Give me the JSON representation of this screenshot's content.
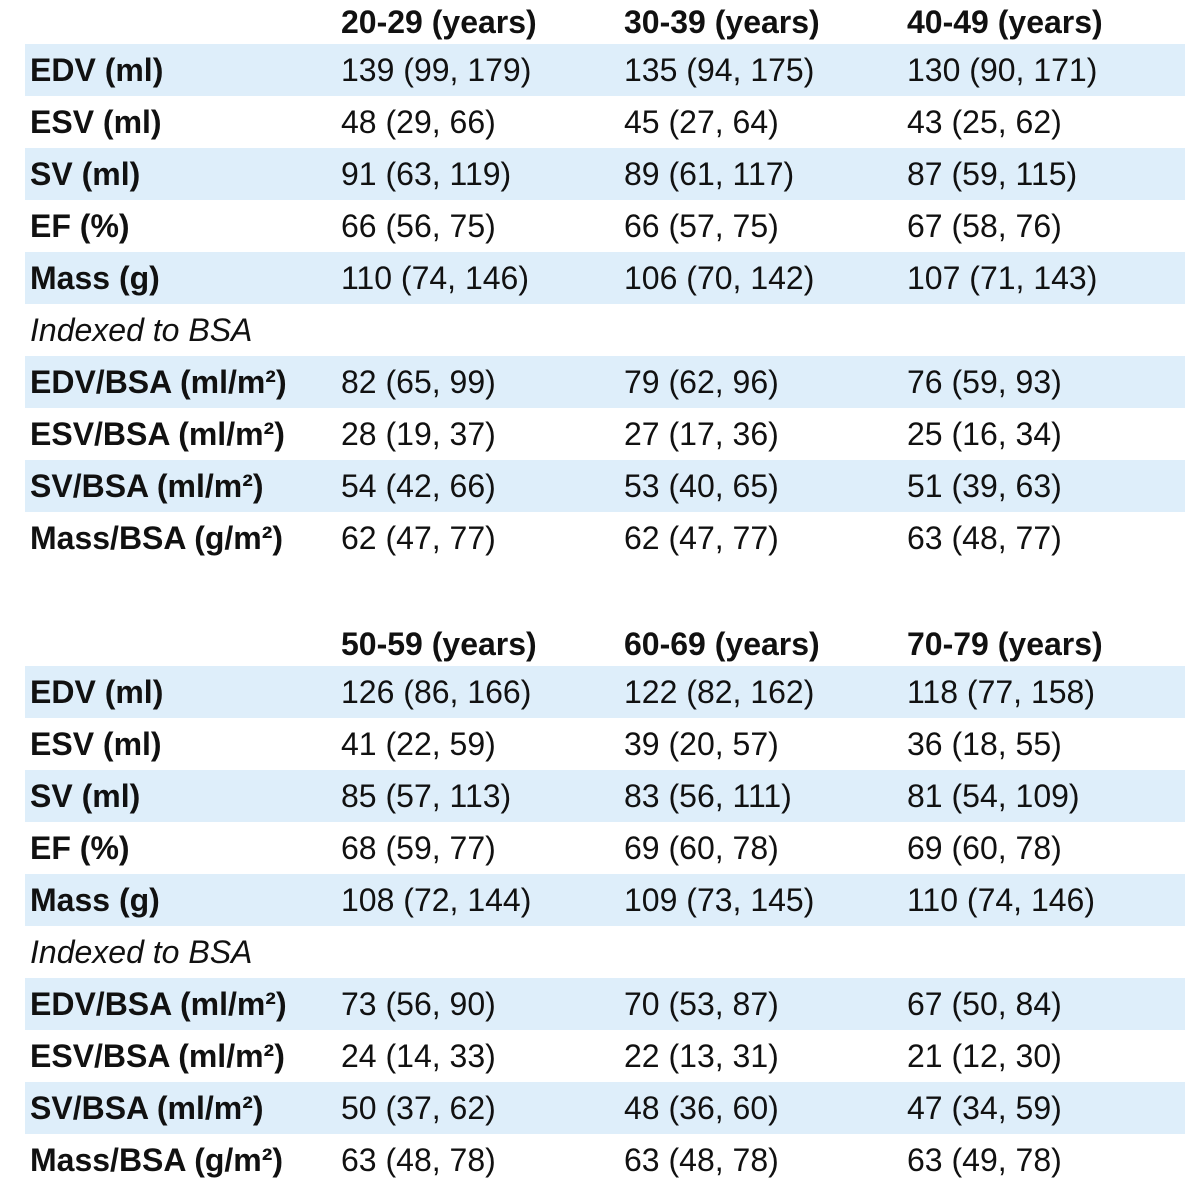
{
  "tables": [
    {
      "header": [
        "",
        "20-29 (years)",
        "30-39 (years)",
        "40-49 (years)"
      ],
      "rows": [
        {
          "label": "EDV (ml)",
          "values": [
            "139 (99, 179)",
            "135 (94, 175)",
            "130 (90, 171)"
          ]
        },
        {
          "label": "ESV (ml)",
          "values": [
            "48 (29, 66)",
            "45 (27, 64)",
            "43 (25, 62)"
          ]
        },
        {
          "label": "SV (ml)",
          "values": [
            "91 (63, 119)",
            "89 (61, 117)",
            "87 (59, 115)"
          ]
        },
        {
          "label": "EF (%)",
          "values": [
            "66 (56, 75)",
            "66 (57, 75)",
            "67 (58, 76)"
          ]
        },
        {
          "label": "Mass (g)",
          "values": [
            "110 (74, 146)",
            "106 (70, 142)",
            "107 (71, 143)"
          ]
        }
      ],
      "section_label": "Indexed to BSA",
      "indexed_rows": [
        {
          "label": "EDV/BSA (ml/m²)",
          "values": [
            "82 (65, 99)",
            "79 (62, 96)",
            "76 (59, 93)"
          ]
        },
        {
          "label": "ESV/BSA (ml/m²)",
          "values": [
            "28 (19, 37)",
            "27 (17, 36)",
            "25 (16, 34)"
          ]
        },
        {
          "label": "SV/BSA (ml/m²)",
          "values": [
            "54 (42, 66)",
            "53 (40, 65)",
            "51 (39, 63)"
          ]
        },
        {
          "label": "Mass/BSA (g/m²)",
          "values": [
            "62 (47, 77)",
            "62 (47, 77)",
            "63 (48, 77)"
          ]
        }
      ]
    },
    {
      "header": [
        "",
        "50-59 (years)",
        "60-69 (years)",
        "70-79 (years)"
      ],
      "rows": [
        {
          "label": "EDV (ml)",
          "values": [
            "126 (86, 166)",
            "122 (82, 162)",
            "118 (77, 158)"
          ]
        },
        {
          "label": "ESV (ml)",
          "values": [
            "41 (22, 59)",
            "39 (20, 57)",
            "36 (18, 55)"
          ]
        },
        {
          "label": "SV (ml)",
          "values": [
            "85 (57, 113)",
            "83 (56, 111)",
            "81 (54, 109)"
          ]
        },
        {
          "label": "EF (%)",
          "values": [
            "68 (59, 77)",
            "69 (60, 78)",
            "69 (60, 78)"
          ]
        },
        {
          "label": "Mass (g)",
          "values": [
            "108 (72, 144)",
            "109 (73, 145)",
            "110 (74, 146)"
          ]
        }
      ],
      "section_label": "Indexed to BSA",
      "indexed_rows": [
        {
          "label": "EDV/BSA (ml/m²)",
          "values": [
            "73 (56, 90)",
            "70 (53, 87)",
            "67 (50, 84)"
          ]
        },
        {
          "label": "ESV/BSA (ml/m²)",
          "values": [
            "24 (14, 33)",
            "22 (13, 31)",
            "21 (12, 30)"
          ]
        },
        {
          "label": "SV/BSA (ml/m²)",
          "values": [
            "50 (37, 62)",
            "48 (36, 60)",
            "47 (34, 59)"
          ]
        },
        {
          "label": "Mass/BSA (g/m²)",
          "values": [
            "63 (48, 78)",
            "63 (48, 78)",
            "63 (49, 78)"
          ]
        }
      ]
    }
  ],
  "colors": {
    "row_shade": "#deeefa",
    "text": "#111111"
  }
}
